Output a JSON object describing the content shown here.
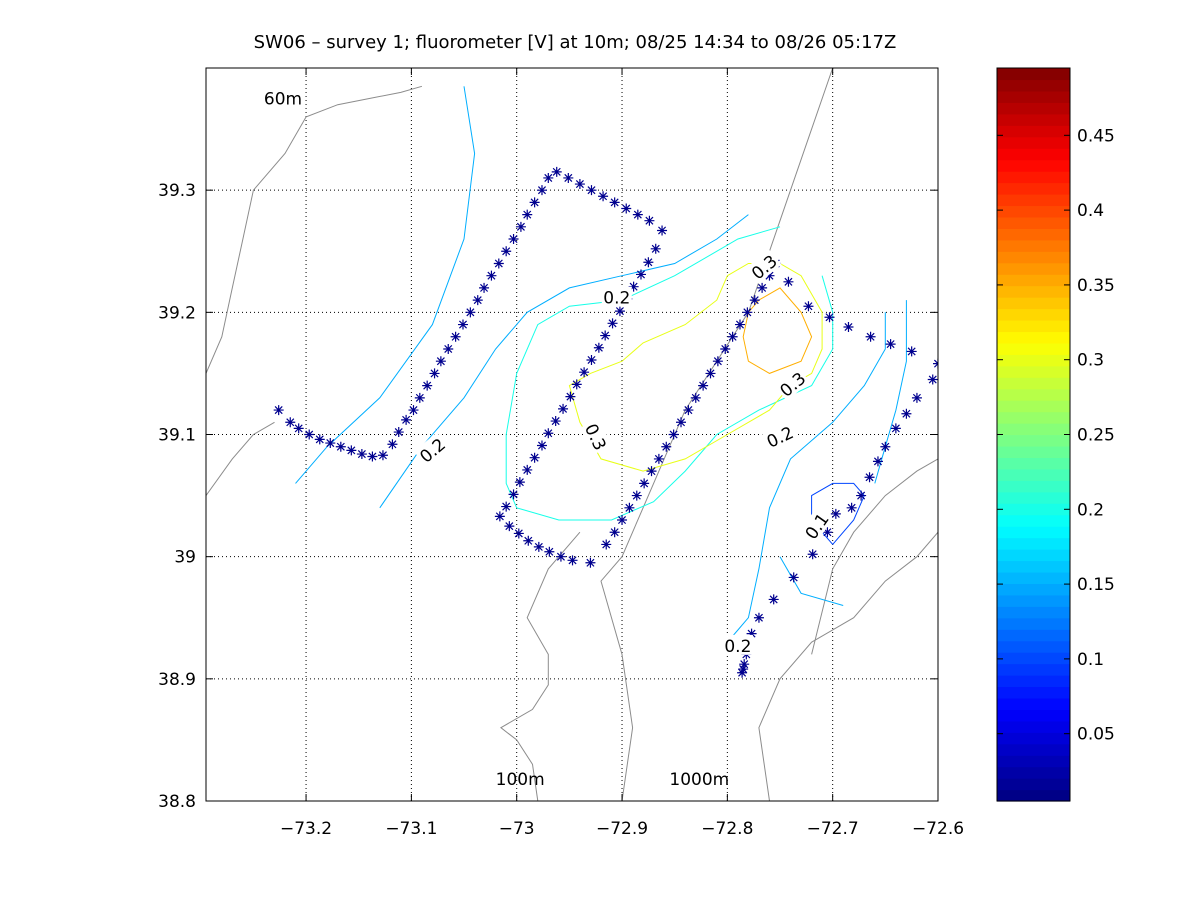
{
  "chart_data": {
    "type": "contour",
    "title": "SW06 – survey 1; fluorometer [V] at 10m; 08/25 14:34 to 08/26 05:17Z",
    "xlabel": "",
    "ylabel": "",
    "xlim": [
      -73.295,
      -72.6
    ],
    "ylim": [
      38.8,
      39.4
    ],
    "grid": true,
    "x_ticks": [
      -73.2,
      -73.1,
      -73.0,
      -72.9,
      -72.8,
      -72.7,
      -72.6
    ],
    "x_tick_labels": [
      "−73.2",
      "−73.1",
      "−73",
      "−72.9",
      "−72.8",
      "−72.7",
      "−72.6"
    ],
    "y_ticks": [
      38.8,
      38.9,
      39.0,
      39.1,
      39.2,
      39.3
    ],
    "y_tick_labels": [
      "38.8",
      "38.9",
      "39",
      "39.1",
      "39.2",
      "39.3"
    ],
    "colorbar": {
      "range": [
        0.005,
        0.495
      ],
      "colormap": "jet",
      "ticks": [
        0.05,
        0.1,
        0.15,
        0.2,
        0.25,
        0.3,
        0.35,
        0.4,
        0.45
      ],
      "tick_labels": [
        "0.05",
        "0.1",
        "0.15",
        "0.2",
        "0.25",
        "0.3",
        "0.35",
        "0.4",
        "0.45"
      ]
    },
    "isobath_labels": [
      {
        "text": "60m",
        "lon": -73.24,
        "lat": 39.37
      },
      {
        "text": "100m",
        "lon": -73.02,
        "lat": 38.813
      },
      {
        "text": "1000m",
        "lon": -72.855,
        "lat": 38.813
      }
    ],
    "isobaths": [
      {
        "name": "60m-shelf-edge",
        "points": [
          [
            -73.295,
            39.15
          ],
          [
            -73.28,
            39.18
          ],
          [
            -73.27,
            39.22
          ],
          [
            -73.26,
            39.26
          ],
          [
            -73.25,
            39.3
          ],
          [
            -73.22,
            39.33
          ],
          [
            -73.2,
            39.36
          ],
          [
            -73.17,
            39.37
          ],
          [
            -73.14,
            39.375
          ],
          [
            -73.11,
            39.38
          ],
          [
            -73.09,
            39.385
          ]
        ]
      },
      {
        "name": "60m-southwest",
        "points": [
          [
            -73.295,
            39.05
          ],
          [
            -73.27,
            39.08
          ],
          [
            -73.25,
            39.1
          ],
          [
            -73.23,
            39.11
          ]
        ]
      },
      {
        "name": "100m-lower",
        "points": [
          [
            -72.98,
            38.8
          ],
          [
            -72.985,
            38.83
          ],
          [
            -73.0,
            38.85
          ],
          [
            -73.015,
            38.86
          ],
          [
            -72.985,
            38.875
          ],
          [
            -72.97,
            38.895
          ],
          [
            -72.97,
            38.92
          ],
          [
            -72.99,
            38.95
          ],
          [
            -72.97,
            38.99
          ],
          [
            -72.94,
            39.02
          ]
        ]
      },
      {
        "name": "shelf-break-1000m",
        "points": [
          [
            -72.9,
            38.8
          ],
          [
            -72.89,
            38.86
          ],
          [
            -72.9,
            38.92
          ],
          [
            -72.92,
            38.98
          ],
          [
            -72.9,
            39.0
          ],
          [
            -72.87,
            39.06
          ],
          [
            -72.84,
            39.12
          ],
          [
            -72.81,
            39.16
          ],
          [
            -72.78,
            39.2
          ],
          [
            -72.76,
            39.25
          ],
          [
            -72.74,
            39.3
          ],
          [
            -72.72,
            39.35
          ],
          [
            -72.7,
            39.4
          ]
        ]
      },
      {
        "name": "canyon-southeast",
        "points": [
          [
            -72.76,
            38.8
          ],
          [
            -72.77,
            38.86
          ],
          [
            -72.75,
            38.9
          ],
          [
            -72.72,
            38.93
          ],
          [
            -72.68,
            38.95
          ],
          [
            -72.65,
            38.98
          ],
          [
            -72.62,
            39.0
          ],
          [
            -72.6,
            39.02
          ]
        ]
      },
      {
        "name": "canyon-east",
        "points": [
          [
            -72.72,
            38.92
          ],
          [
            -72.7,
            38.99
          ],
          [
            -72.68,
            39.02
          ],
          [
            -72.65,
            39.05
          ],
          [
            -72.62,
            39.07
          ],
          [
            -72.6,
            39.08
          ]
        ]
      }
    ],
    "contours": [
      {
        "level": 0.15,
        "points": [
          [
            -73.05,
            39.385
          ],
          [
            -73.04,
            39.33
          ],
          [
            -73.05,
            39.26
          ],
          [
            -73.08,
            39.19
          ],
          [
            -73.13,
            39.13
          ],
          [
            -73.18,
            39.09
          ],
          [
            -73.21,
            39.06
          ]
        ]
      },
      {
        "level": 0.15,
        "points": [
          [
            -73.13,
            39.04
          ],
          [
            -73.09,
            39.09
          ],
          [
            -73.05,
            39.13
          ],
          [
            -73.02,
            39.17
          ],
          [
            -72.99,
            39.2
          ],
          [
            -72.95,
            39.22
          ],
          [
            -72.9,
            39.23
          ],
          [
            -72.85,
            39.24
          ],
          [
            -72.81,
            39.26
          ],
          [
            -72.78,
            39.28
          ]
        ]
      },
      {
        "level": 0.15,
        "points": [
          [
            -72.65,
            39.2
          ],
          [
            -72.65,
            39.17
          ],
          [
            -72.67,
            39.14
          ],
          [
            -72.7,
            39.11
          ],
          [
            -72.74,
            39.08
          ],
          [
            -72.76,
            39.04
          ],
          [
            -72.77,
            38.99
          ],
          [
            -72.78,
            38.95
          ],
          [
            -72.79,
            38.94
          ],
          [
            -72.8,
            38.93
          ]
        ]
      },
      {
        "level": 0.15,
        "points": [
          [
            -72.63,
            39.21
          ],
          [
            -72.63,
            39.16
          ],
          [
            -72.64,
            39.12
          ],
          [
            -72.65,
            39.09
          ],
          [
            -72.66,
            39.06
          ]
        ]
      },
      {
        "level": 0.15,
        "points": [
          [
            -72.75,
            39.0
          ],
          [
            -72.73,
            38.97
          ],
          [
            -72.69,
            38.96
          ]
        ]
      },
      {
        "level": 0.2,
        "points": [
          [
            -72.75,
            39.27
          ],
          [
            -72.79,
            39.26
          ],
          [
            -72.85,
            39.23
          ],
          [
            -72.9,
            39.21
          ],
          [
            -72.95,
            39.205
          ],
          [
            -72.98,
            39.19
          ],
          [
            -73.0,
            39.15
          ],
          [
            -73.01,
            39.1
          ],
          [
            -73.01,
            39.06
          ],
          [
            -73.0,
            39.04
          ],
          [
            -72.96,
            39.03
          ],
          [
            -72.91,
            39.03
          ],
          [
            -72.87,
            39.045
          ],
          [
            -72.84,
            39.07
          ],
          [
            -72.81,
            39.1
          ],
          [
            -72.77,
            39.12
          ],
          [
            -72.72,
            39.14
          ],
          [
            -72.7,
            39.17
          ],
          [
            -72.7,
            39.2
          ],
          [
            -72.71,
            39.23
          ]
        ]
      },
      {
        "level": 0.3,
        "points": [
          [
            -72.8,
            39.23
          ],
          [
            -72.78,
            39.24
          ],
          [
            -72.75,
            39.24
          ],
          [
            -72.73,
            39.23
          ],
          [
            -72.71,
            39.2
          ],
          [
            -72.71,
            39.17
          ],
          [
            -72.72,
            39.15
          ],
          [
            -72.74,
            39.14
          ],
          [
            -72.76,
            39.12
          ],
          [
            -72.8,
            39.1
          ],
          [
            -72.84,
            39.08
          ],
          [
            -72.88,
            39.07
          ],
          [
            -72.92,
            39.08
          ],
          [
            -72.94,
            39.11
          ],
          [
            -72.95,
            39.14
          ],
          [
            -72.93,
            39.15
          ],
          [
            -72.9,
            39.16
          ],
          [
            -72.88,
            39.175
          ],
          [
            -72.84,
            39.19
          ],
          [
            -72.81,
            39.21
          ],
          [
            -72.8,
            39.23
          ]
        ]
      },
      {
        "level": 0.35,
        "points": [
          [
            -72.77,
            39.21
          ],
          [
            -72.75,
            39.22
          ],
          [
            -72.73,
            39.2
          ],
          [
            -72.72,
            39.18
          ],
          [
            -72.73,
            39.16
          ],
          [
            -72.76,
            39.15
          ],
          [
            -72.78,
            39.16
          ],
          [
            -72.785,
            39.18
          ],
          [
            -72.78,
            39.2
          ],
          [
            -72.77,
            39.21
          ]
        ]
      },
      {
        "level": 0.1,
        "points": [
          [
            -72.7,
            39.01
          ],
          [
            -72.68,
            39.03
          ],
          [
            -72.67,
            39.05
          ],
          [
            -72.68,
            39.06
          ],
          [
            -72.7,
            39.06
          ],
          [
            -72.72,
            39.05
          ],
          [
            -72.72,
            39.03
          ],
          [
            -72.7,
            39.01
          ]
        ]
      }
    ],
    "contour_labels": [
      {
        "text": "0.2",
        "lon": -72.905,
        "lat": 39.212,
        "angle": 0
      },
      {
        "text": "0.2",
        "lon": -73.08,
        "lat": 39.087,
        "angle": -40
      },
      {
        "text": "0.3",
        "lon": -72.925,
        "lat": 39.098,
        "angle": 65
      },
      {
        "text": "0.3",
        "lon": -72.765,
        "lat": 39.237,
        "angle": -40
      },
      {
        "text": "0.3",
        "lon": -72.738,
        "lat": 39.141,
        "angle": -40
      },
      {
        "text": "0.2",
        "lon": -72.75,
        "lat": 39.098,
        "angle": -25
      },
      {
        "text": "0.1",
        "lon": -72.715,
        "lat": 39.025,
        "angle": -55
      },
      {
        "text": "0.2",
        "lon": -72.79,
        "lat": 38.927,
        "angle": 0
      }
    ],
    "survey_track": [
      [
        -73.226,
        39.12
      ],
      [
        -73.215,
        39.11
      ],
      [
        -73.207,
        39.105
      ],
      [
        -73.197,
        39.1
      ],
      [
        -73.187,
        39.096
      ],
      [
        -73.177,
        39.093
      ],
      [
        -73.167,
        39.09
      ],
      [
        -73.157,
        39.087
      ],
      [
        -73.147,
        39.084
      ],
      [
        -73.137,
        39.082
      ],
      [
        -73.127,
        39.083
      ],
      [
        -73.118,
        39.092
      ],
      [
        -73.112,
        39.102
      ],
      [
        -73.105,
        39.112
      ],
      [
        -73.098,
        39.12
      ],
      [
        -73.092,
        39.13
      ],
      [
        -73.085,
        39.14
      ],
      [
        -73.078,
        39.15
      ],
      [
        -73.072,
        39.16
      ],
      [
        -73.065,
        39.17
      ],
      [
        -73.058,
        39.18
      ],
      [
        -73.051,
        39.19
      ],
      [
        -73.044,
        39.2
      ],
      [
        -73.037,
        39.21
      ],
      [
        -73.031,
        39.22
      ],
      [
        -73.024,
        39.23
      ],
      [
        -73.017,
        39.24
      ],
      [
        -73.01,
        39.25
      ],
      [
        -73.003,
        39.26
      ],
      [
        -72.996,
        39.27
      ],
      [
        -72.99,
        39.28
      ],
      [
        -72.983,
        39.29
      ],
      [
        -72.976,
        39.3
      ],
      [
        -72.97,
        39.31
      ],
      [
        -72.962,
        39.315
      ],
      [
        -72.951,
        39.31
      ],
      [
        -72.94,
        39.305
      ],
      [
        -72.929,
        39.3
      ],
      [
        -72.918,
        39.295
      ],
      [
        -72.907,
        39.29
      ],
      [
        -72.896,
        39.285
      ],
      [
        -72.885,
        39.28
      ],
      [
        -72.874,
        39.275
      ],
      [
        -72.862,
        39.267
      ],
      [
        -72.868,
        39.252
      ],
      [
        -72.875,
        39.241
      ],
      [
        -72.882,
        39.231
      ],
      [
        -72.889,
        39.221
      ],
      [
        -72.895,
        39.211
      ],
      [
        -72.902,
        39.201
      ],
      [
        -72.909,
        39.191
      ],
      [
        -72.916,
        39.181
      ],
      [
        -72.922,
        39.171
      ],
      [
        -72.929,
        39.161
      ],
      [
        -72.936,
        39.151
      ],
      [
        -72.943,
        39.141
      ],
      [
        -72.949,
        39.131
      ],
      [
        -72.956,
        39.121
      ],
      [
        -72.963,
        39.111
      ],
      [
        -72.97,
        39.101
      ],
      [
        -72.976,
        39.091
      ],
      [
        -72.983,
        39.081
      ],
      [
        -72.99,
        39.071
      ],
      [
        -72.997,
        39.061
      ],
      [
        -73.003,
        39.051
      ],
      [
        -73.01,
        39.041
      ],
      [
        -73.016,
        39.033
      ],
      [
        -73.007,
        39.025
      ],
      [
        -72.998,
        39.019
      ],
      [
        -72.989,
        39.013
      ],
      [
        -72.979,
        39.008
      ],
      [
        -72.969,
        39.004
      ],
      [
        -72.958,
        39.0
      ],
      [
        -72.947,
        38.997
      ],
      [
        -72.93,
        38.995
      ],
      [
        -72.915,
        39.01
      ],
      [
        -72.907,
        39.02
      ],
      [
        -72.9,
        39.03
      ],
      [
        -72.893,
        39.04
      ],
      [
        -72.886,
        39.05
      ],
      [
        -72.879,
        39.06
      ],
      [
        -72.872,
        39.07
      ],
      [
        -72.865,
        39.08
      ],
      [
        -72.858,
        39.09
      ],
      [
        -72.851,
        39.1
      ],
      [
        -72.844,
        39.11
      ],
      [
        -72.837,
        39.12
      ],
      [
        -72.83,
        39.13
      ],
      [
        -72.823,
        39.14
      ],
      [
        -72.816,
        39.15
      ],
      [
        -72.809,
        39.16
      ],
      [
        -72.802,
        39.17
      ],
      [
        -72.795,
        39.18
      ],
      [
        -72.788,
        39.19
      ],
      [
        -72.781,
        39.2
      ],
      [
        -72.774,
        39.21
      ],
      [
        -72.767,
        39.22
      ],
      [
        -72.76,
        39.23
      ],
      [
        -72.754,
        39.24
      ],
      [
        -72.742,
        39.225
      ],
      [
        -72.723,
        39.205
      ],
      [
        -72.703,
        39.196
      ],
      [
        -72.685,
        39.188
      ],
      [
        -72.664,
        39.18
      ],
      [
        -72.645,
        39.174
      ],
      [
        -72.625,
        39.168
      ],
      [
        -72.6,
        39.158
      ],
      [
        -72.605,
        39.145
      ],
      [
        -72.62,
        39.13
      ],
      [
        -72.63,
        39.117
      ],
      [
        -72.64,
        39.105
      ],
      [
        -72.65,
        39.09
      ],
      [
        -72.657,
        39.078
      ],
      [
        -72.665,
        39.065
      ],
      [
        -72.673,
        39.05
      ],
      [
        -72.682,
        39.04
      ],
      [
        -72.697,
        39.035
      ],
      [
        -72.705,
        39.02
      ],
      [
        -72.719,
        39.002
      ],
      [
        -72.737,
        38.983
      ],
      [
        -72.756,
        38.965
      ],
      [
        -72.77,
        38.95
      ],
      [
        -72.777,
        38.937
      ],
      [
        -72.782,
        38.92
      ],
      [
        -72.784,
        38.912
      ],
      [
        -72.785,
        38.908
      ],
      [
        -72.786,
        38.905
      ]
    ]
  }
}
